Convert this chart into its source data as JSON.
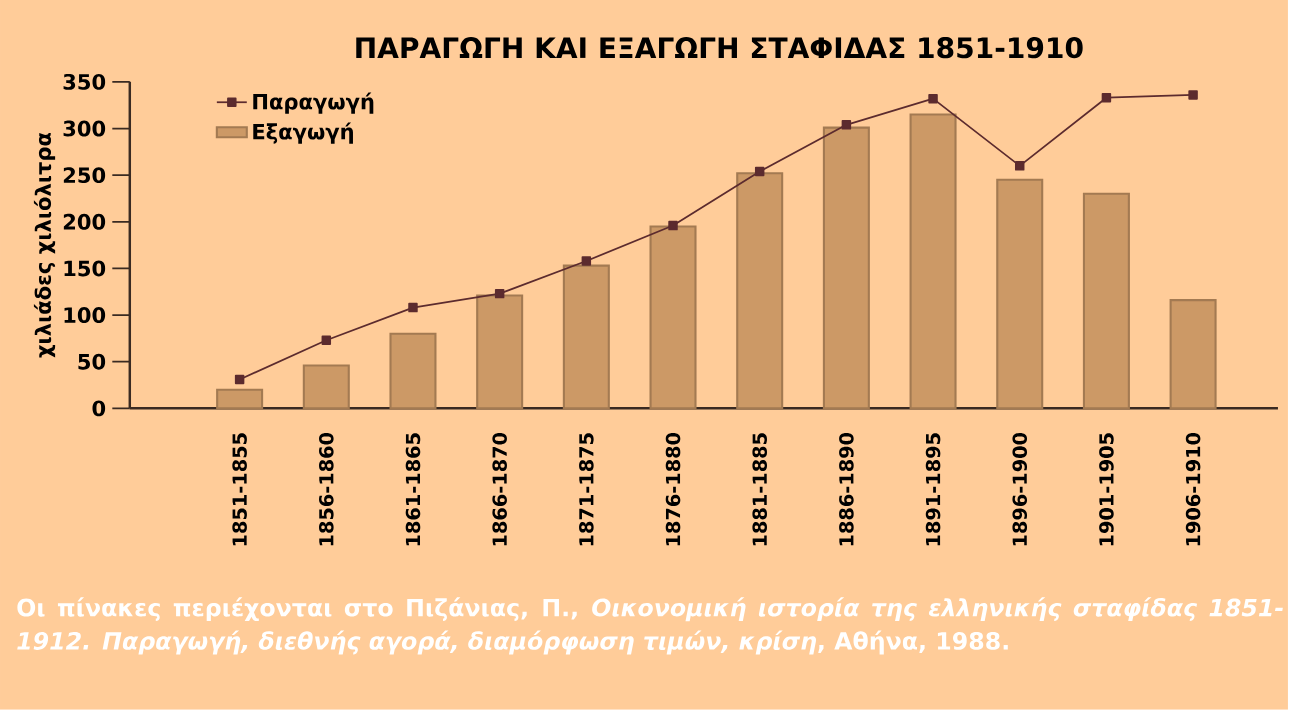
{
  "chart_data": {
    "type": "bar",
    "title": "ΠΑΡΑΓΩΓΗ ΚΑΙ ΕΞΑΓΩΓΗ ΣΤΑΦΙΔΑΣ 1851-1910",
    "ylabel": "χιλιάδες χιλιόλιτρα",
    "categories": [
      "1851-1855",
      "1856-1860",
      "1861-1865",
      "1866-1870",
      "1871-1875",
      "1876-1880",
      "1881-1885",
      "1886-1890",
      "1891-1895",
      "1896-1900",
      "1901-1905",
      "1906-1910"
    ],
    "series": [
      {
        "name": "Παραγωγή",
        "type": "line",
        "color": "#5c2b2e",
        "values": [
          31,
          73,
          108,
          123,
          158,
          196,
          254,
          304,
          332,
          260,
          333,
          336
        ]
      },
      {
        "name": "Εξαγωγή",
        "color": "#cc9966",
        "values": [
          20,
          46,
          80,
          121,
          153,
          195,
          252,
          301,
          315,
          245,
          230,
          116
        ]
      }
    ],
    "ylim": [
      0,
      350
    ],
    "yticks": [
      0,
      50,
      100,
      150,
      200,
      250,
      300,
      350
    ],
    "legend": "top left",
    "marker": "square",
    "line_style": "solid",
    "grid": false,
    "annotations": [
      "Οι πίνακες περιέχονται στο Πιζάνιας, Π., *Οικονομική ιστορία της ελληνικής σταφίδας 1851-1912. Παραγωγή, διεθνής αγορά, διαμόρφωση τιμών, κρίση*, Αθήνα, 1988."
    ]
  }
}
